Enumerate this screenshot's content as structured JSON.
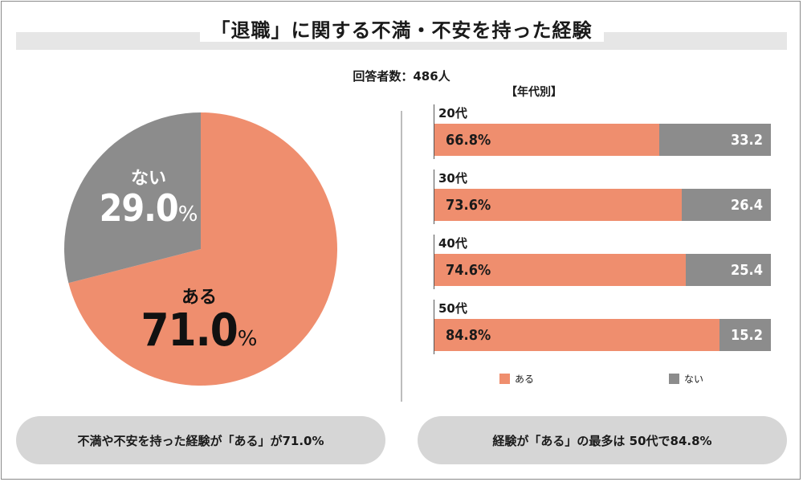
{
  "title": "「退職」に関する不満・不安を持った経験",
  "respondents": "回答者数：486人",
  "colors": {
    "yes": "#ef8e6e",
    "no": "#8c8c8c",
    "band": "#e6e6e6",
    "pill": "#d6d6d6"
  },
  "chart_data": [
    {
      "type": "pie",
      "slices": [
        {
          "label": "ある",
          "value": 71.0,
          "value_text": "71.0",
          "color": "#ef8e6e"
        },
        {
          "label": "ない",
          "value": 29.0,
          "value_text": "29.0",
          "color": "#8c8c8c"
        }
      ],
      "unit": "%"
    },
    {
      "type": "bar",
      "orientation": "horizontal",
      "stacked": true,
      "subtitle": "【年代別】",
      "categories": [
        "20代",
        "30代",
        "40代",
        "50代"
      ],
      "series": [
        {
          "name": "ある",
          "values": [
            66.8,
            73.6,
            74.6,
            84.8
          ],
          "labels": [
            "66.8%",
            "73.6%",
            "74.6%",
            "84.8%"
          ],
          "color": "#ef8e6e"
        },
        {
          "name": "ない",
          "values": [
            33.2,
            26.4,
            25.4,
            15.2
          ],
          "labels": [
            "33.2",
            "26.4",
            "25.4",
            "15.2"
          ],
          "color": "#8c8c8c"
        }
      ],
      "xlim": [
        0,
        100
      ],
      "legend": "bottom"
    }
  ],
  "summary": {
    "left": "不満や不安を持った経験が「ある」が71.0%",
    "right": "経験が「ある」の最多は 50代で84.8%"
  }
}
